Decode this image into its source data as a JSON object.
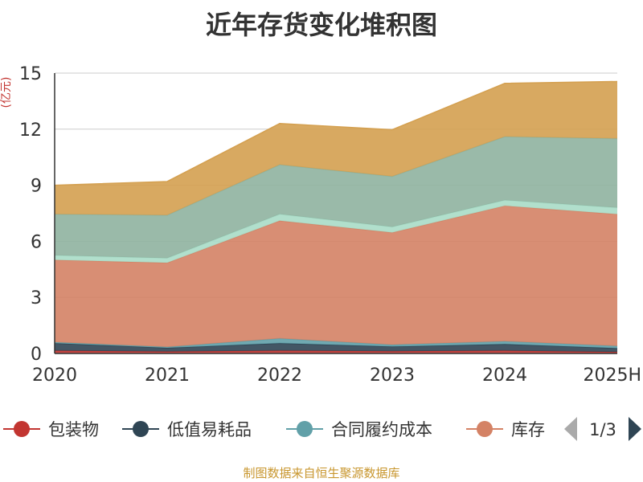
{
  "chart_data": {
    "type": "area",
    "title": "近年存货变化堆积图",
    "ylabel": "(亿元)",
    "categories": [
      "2020",
      "2021",
      "2022",
      "2023",
      "2024",
      "2025H"
    ],
    "yticks": [
      "0",
      "3",
      "6",
      "9",
      "12",
      "15"
    ],
    "ylim": [
      0,
      15
    ],
    "grid": true,
    "stacked": true,
    "legend_position": "bottom",
    "series": [
      {
        "name": "包装物",
        "color": "#c23531",
        "values": [
          0.15,
          0.1,
          0.15,
          0.12,
          0.15,
          0.08
        ]
      },
      {
        "name": "低值易耗品",
        "color": "#2f4554",
        "values": [
          0.4,
          0.2,
          0.4,
          0.25,
          0.35,
          0.2
        ]
      },
      {
        "name": "合同履约成本",
        "color": "#61a0a8",
        "values": [
          0.05,
          0.05,
          0.25,
          0.1,
          0.15,
          0.12
        ]
      },
      {
        "name": "库存",
        "color": "#d48265",
        "values": [
          4.4,
          4.5,
          6.3,
          6.0,
          7.25,
          7.05
        ]
      },
      {
        "name": "",
        "color": "#a8dbc7",
        "values": [
          0.25,
          0.25,
          0.35,
          0.3,
          0.3,
          0.35
        ]
      },
      {
        "name": "",
        "color": "#8fb3a0",
        "values": [
          2.2,
          2.3,
          2.65,
          2.7,
          3.4,
          3.7
        ]
      },
      {
        "name": "",
        "color": "#d4a050",
        "values": [
          1.55,
          1.8,
          2.2,
          2.5,
          2.85,
          3.05
        ]
      }
    ]
  },
  "legend": {
    "items": [
      {
        "label": "包装物",
        "color": "#c23531"
      },
      {
        "label": "低值易耗品",
        "color": "#2f4554"
      },
      {
        "label": "合同履约成本",
        "color": "#61a0a8"
      },
      {
        "label": "库存",
        "color": "#d48265"
      }
    ],
    "page_indicator": "1/3",
    "prev_icon": "triangle-left",
    "next_icon": "triangle-right"
  },
  "footer": {
    "source": "制图数据来自恒生聚源数据库"
  }
}
